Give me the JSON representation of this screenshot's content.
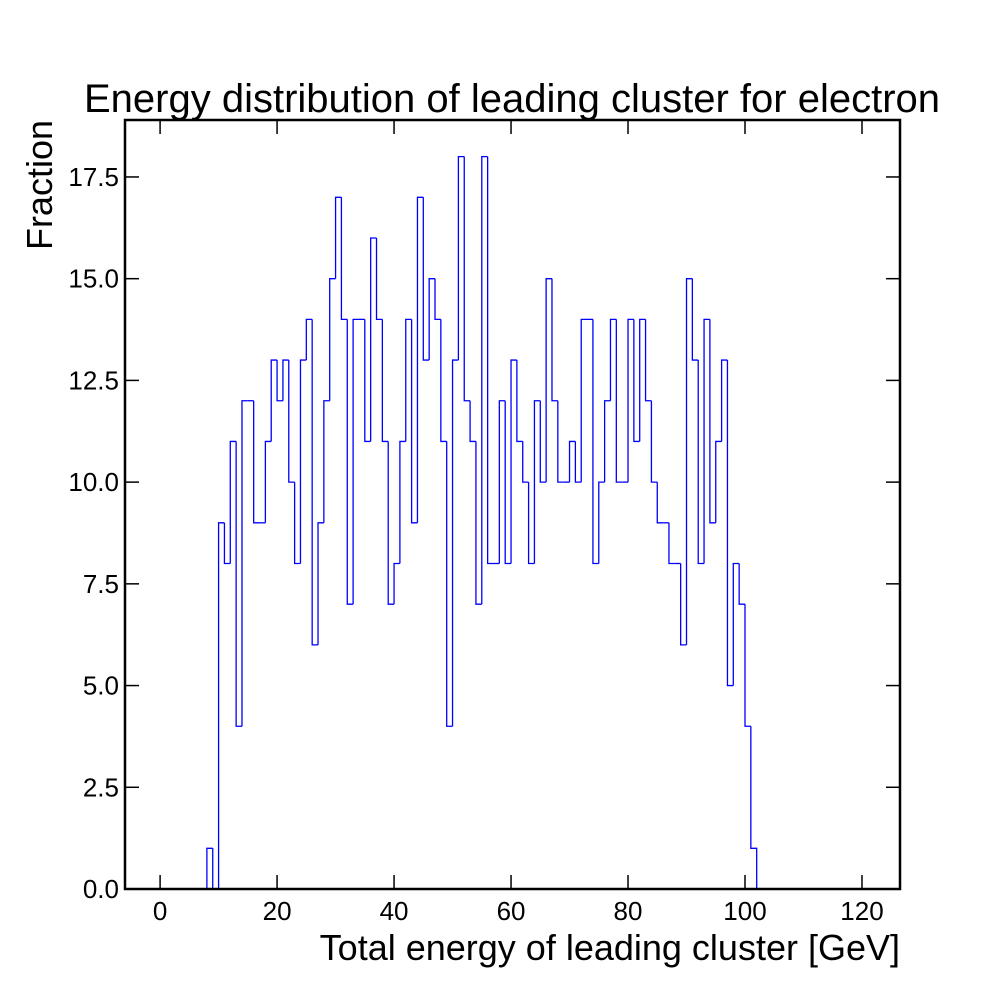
{
  "chart_data": {
    "type": "histogram",
    "title": "Energy distribution of leading cluster for electron",
    "xlabel": "Total energy of leading cluster [GeV]",
    "ylabel": "Fraction",
    "color": "#0000ff",
    "bins": [
      8,
      9,
      10,
      11,
      12,
      13,
      14,
      15,
      16,
      17,
      18,
      19,
      20,
      21,
      22,
      23,
      24,
      25,
      26,
      27,
      28,
      29,
      30,
      31,
      32,
      33,
      34,
      35,
      36,
      37,
      38,
      39,
      40,
      41,
      42,
      43,
      44,
      45,
      46,
      47,
      48,
      49,
      50,
      51,
      52,
      53,
      54,
      55,
      56,
      57,
      58,
      59,
      60,
      61,
      62,
      63,
      64,
      65,
      66,
      67,
      68,
      69,
      70,
      71,
      72,
      73,
      74,
      75,
      76,
      77,
      78,
      79,
      80,
      81,
      82,
      83,
      84,
      85,
      86,
      87,
      88,
      89,
      90,
      91,
      92,
      93,
      94,
      95,
      96,
      97,
      98,
      99,
      100,
      101,
      102
    ],
    "values": [
      1,
      0,
      9,
      8,
      11,
      4,
      12,
      12,
      9,
      9,
      11,
      13,
      12,
      13,
      10,
      8,
      13,
      14,
      6,
      9,
      12,
      15,
      17,
      14,
      7,
      14,
      14,
      11,
      16,
      14,
      11,
      7,
      8,
      11,
      14,
      9,
      17,
      13,
      15,
      14,
      11,
      4,
      13,
      18,
      12,
      11,
      7,
      18,
      8,
      8,
      12,
      8,
      13,
      11,
      10,
      8,
      12,
      10,
      15,
      12,
      10,
      10,
      11,
      10,
      14,
      14,
      8,
      10,
      12,
      14,
      10,
      10,
      14,
      11,
      14,
      12,
      10,
      9,
      9,
      8,
      8,
      6,
      15,
      13,
      8,
      14,
      9,
      11,
      13,
      5,
      8,
      7,
      4,
      1
    ],
    "xlim": [
      -6,
      126.5
    ],
    "ylim": [
      0,
      18.9
    ],
    "xticks": [
      0,
      20,
      40,
      60,
      80,
      100,
      120
    ],
    "yticks": [
      {
        "value": 0,
        "label": "0.0"
      },
      2.5,
      {
        "value": 5,
        "label": "5.0"
      },
      7.5,
      {
        "value": 10,
        "label": "10.0"
      },
      12.5,
      {
        "value": 15,
        "label": "15.0"
      },
      17.5
    ]
  }
}
